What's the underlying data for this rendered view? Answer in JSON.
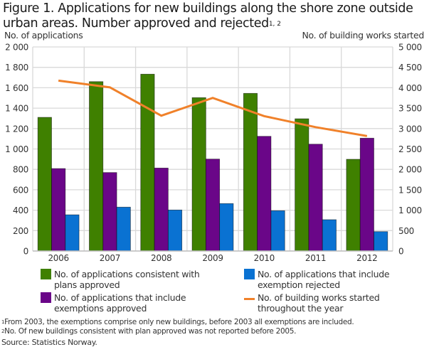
{
  "title": {
    "text": "Figure 1. Applications for new buildings along the shore zone outside urban areas. Number approved and rejected",
    "superscript": "1, 2"
  },
  "chart_data": {
    "type": "bar",
    "title": "Figure 1. Applications for new buildings along the shore zone outside urban areas. Number approved and rejected",
    "categories": [
      "2006",
      "2007",
      "2008",
      "2009",
      "2010",
      "2011",
      "2012"
    ],
    "ylabel": "No. of applications",
    "y2label": "No. of building works started",
    "ylim": [
      0,
      2000
    ],
    "y2lim": [
      0,
      5000
    ],
    "yticks": [
      "0",
      "200",
      "400",
      "600",
      "800",
      "1 000",
      "1 200",
      "1 400",
      "1 600",
      "1 800",
      "2 000"
    ],
    "y2ticks": [
      "0",
      "500",
      "1 000",
      "1 500",
      "2 000",
      "2 500",
      "3 000",
      "3 500",
      "4 000",
      "4 500",
      "5 000"
    ],
    "grid": true,
    "legend_position": "bottom",
    "series": [
      {
        "name": "No. of applications consistent with plans approved",
        "type": "bar",
        "axis": "left",
        "color": "#3f8000",
        "values": [
          1310,
          1660,
          1733,
          1503,
          1545,
          1296,
          899
        ]
      },
      {
        "name": "No. of applications that include exemptions approved",
        "type": "bar",
        "axis": "left",
        "color": "#6a0688",
        "values": [
          808,
          769,
          813,
          901,
          1124,
          1047,
          1106
        ]
      },
      {
        "name": "No. of applications that include exemption rejected",
        "type": "bar",
        "axis": "left",
        "color": "#0a72d2",
        "values": [
          355,
          430,
          402,
          465,
          395,
          307,
          190
        ]
      },
      {
        "name": "No. of building works started throughout the year",
        "type": "line",
        "axis": "right",
        "color": "#f0812a",
        "values": [
          4175,
          4010,
          3315,
          3750,
          3305,
          3035,
          2817
        ]
      }
    ]
  },
  "legend": [
    {
      "label": "No. of applications consistent with plans approved",
      "color": "#3f8000",
      "kind": "swatch"
    },
    {
      "label": "No. of applications that include exemptions approved",
      "color": "#6a0688",
      "kind": "swatch"
    },
    {
      "label": "No. of applications that include exemption rejected",
      "color": "#0a72d2",
      "kind": "swatch"
    },
    {
      "label": "No. of building works started throughout the year",
      "color": "#f0812a",
      "kind": "line"
    }
  ],
  "footnotes": [
    {
      "mark": "1",
      "text": "From 2003, the exemptions comprise only new buildings, before 2003 all exemptions are included."
    },
    {
      "mark": "2",
      "text": "No. Of new buildings consistent with plan approved was not reported before 2005."
    }
  ],
  "source": "Source: Statistics Norway."
}
